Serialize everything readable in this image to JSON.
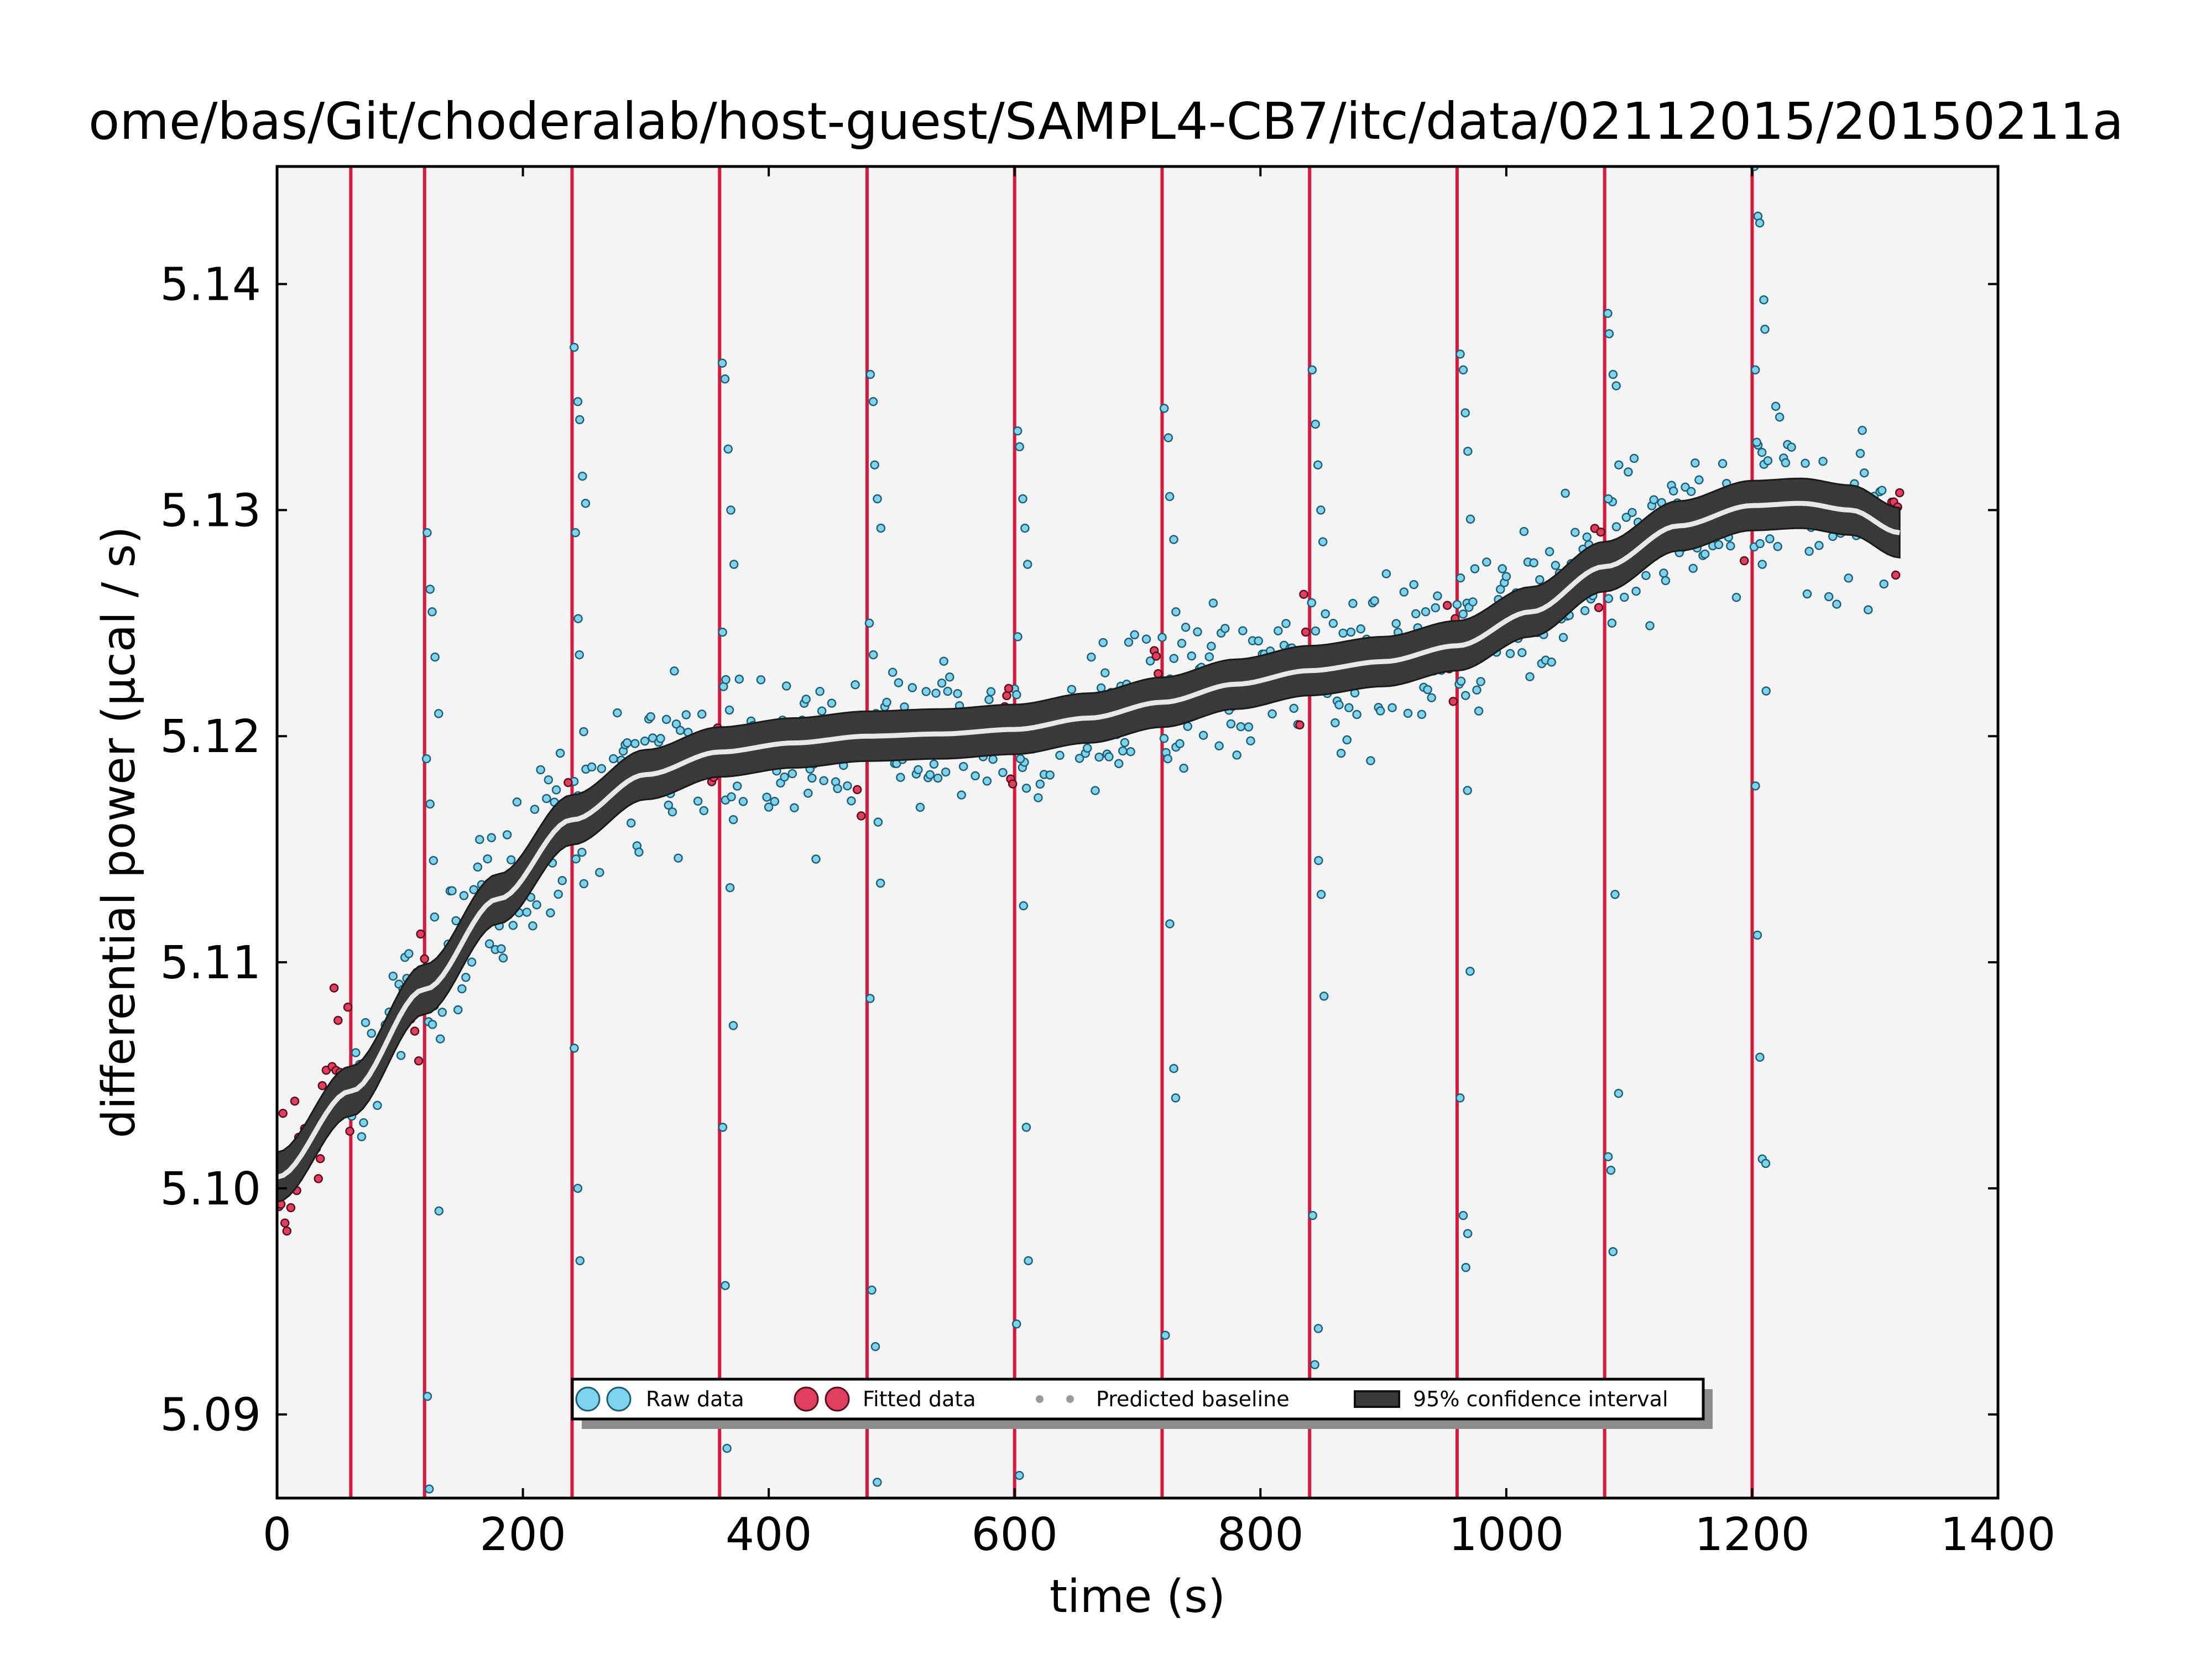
{
  "chart_data": {
    "type": "scatter",
    "title": "ome/bas/Git/choderalab/host-guest/SAMPL4-CB7/itc/data/02112015/20150211a",
    "xlabel": "time (s)",
    "ylabel": "differential power (μcal / s)",
    "xlim": [
      0,
      1400
    ],
    "ylim": [
      5.0863,
      5.1452
    ],
    "x_ticks": [
      0,
      200,
      400,
      600,
      800,
      1000,
      1200,
      1400
    ],
    "y_ticks": [
      5.09,
      5.1,
      5.11,
      5.12,
      5.13,
      5.14
    ],
    "grid": false,
    "legend_position": "bottom-center",
    "colors": {
      "raw": "#7fd3ee",
      "fitted": "#e0405e",
      "injection_line": "#d6193d",
      "band": "#3a3a3a",
      "baseline": "#e8e8e8",
      "axes_bg": "#f4f4f4"
    },
    "injection_times": [
      60,
      120,
      240,
      360,
      480,
      600,
      720,
      840,
      960,
      1080,
      1200
    ],
    "baseline": {
      "x": [
        0,
        60,
        120,
        180,
        240,
        300,
        360,
        420,
        480,
        540,
        600,
        660,
        720,
        780,
        840,
        900,
        960,
        1020,
        1080,
        1140,
        1200,
        1240,
        1280,
        1320
      ],
      "y": [
        5.1005,
        5.1043,
        5.1088,
        5.1128,
        5.1163,
        5.1183,
        5.1193,
        5.1197,
        5.12,
        5.1201,
        5.1203,
        5.1208,
        5.1215,
        5.1223,
        5.1229,
        5.1233,
        5.124,
        5.1255,
        5.1275,
        5.1293,
        5.1302,
        5.1303,
        5.13,
        5.129
      ],
      "ci_halfwidth": 0.0011
    },
    "fitted_segments": [
      [
        0,
        60
      ],
      [
        108,
        120
      ],
      [
        232,
        240
      ],
      [
        352,
        360
      ],
      [
        472,
        480
      ],
      [
        592,
        600
      ],
      [
        712,
        720
      ],
      [
        832,
        840
      ],
      [
        952,
        960
      ],
      [
        1072,
        1080
      ],
      [
        1192,
        1200
      ],
      [
        1310,
        1320
      ]
    ],
    "series": [
      {
        "name": "Raw data",
        "kind": "raw_scatter",
        "noise_sd": 0.0016
      },
      {
        "name": "Fitted data",
        "kind": "fitted_scatter",
        "noise_sd": 0.0017
      },
      {
        "name": "Predicted baseline",
        "kind": "line"
      },
      {
        "name": "95% confidence interval",
        "kind": "band"
      }
    ],
    "injection_spikes": [
      {
        "t": 120,
        "values": [
          5.129,
          5.1265,
          5.1255,
          5.1235,
          5.121,
          5.119,
          5.117,
          5.1145,
          5.112,
          5.099,
          5.0908,
          5.0867
        ]
      },
      {
        "t": 240,
        "values": [
          5.1372,
          5.1348,
          5.134,
          5.1315,
          5.1303,
          5.129,
          5.1252,
          5.1236,
          5.1202,
          5.1164,
          5.1062,
          5.1,
          5.0968
        ]
      },
      {
        "t": 360,
        "values": [
          5.1365,
          5.1358,
          5.1327,
          5.13,
          5.1276,
          5.1246,
          5.1225,
          5.1186,
          5.1133,
          5.1072,
          5.1027,
          5.0957,
          5.0885
        ]
      },
      {
        "t": 480,
        "values": [
          5.136,
          5.1348,
          5.132,
          5.1305,
          5.1292,
          5.125,
          5.1236,
          5.121,
          5.1162,
          5.1135,
          5.1084,
          5.0955,
          5.093,
          5.087
        ]
      },
      {
        "t": 600,
        "values": [
          5.1335,
          5.1328,
          5.1305,
          5.1292,
          5.1276,
          5.1244,
          5.119,
          5.1125,
          5.1027,
          5.0968,
          5.094,
          5.0873
        ]
      },
      {
        "t": 720,
        "values": [
          5.1345,
          5.1332,
          5.1306,
          5.1287,
          5.1255,
          5.1222,
          5.119,
          5.1117,
          5.1053,
          5.104,
          5.0935,
          5.0912
        ]
      },
      {
        "t": 840,
        "values": [
          5.1362,
          5.1338,
          5.132,
          5.13,
          5.1286,
          5.1259,
          5.123,
          5.1145,
          5.113,
          5.1085,
          5.0988,
          5.0922,
          5.0938
        ]
      },
      {
        "t": 960,
        "values": [
          5.1369,
          5.1362,
          5.1343,
          5.1326,
          5.1296,
          5.127,
          5.1254,
          5.1218,
          5.1176,
          5.1096,
          5.104,
          5.0988,
          5.0965,
          5.098
        ]
      },
      {
        "t": 1080,
        "values": [
          5.1387,
          5.1378,
          5.136,
          5.1355,
          5.132,
          5.1305,
          5.1282,
          5.125,
          5.113,
          5.1042,
          5.1014,
          5.1008,
          5.0972
        ]
      },
      {
        "t": 1200,
        "values": [
          5.1452,
          5.143,
          5.1427,
          5.1393,
          5.138,
          5.1362,
          5.133,
          5.1302,
          5.1276,
          5.122,
          5.1178,
          5.1112,
          5.1058,
          5.1013,
          5.1011
        ]
      }
    ]
  },
  "legend": {
    "raw_label": "Raw data",
    "fitted_label": "Fitted data",
    "baseline_label": "Predicted baseline",
    "ci_label": "95% confidence interval"
  }
}
